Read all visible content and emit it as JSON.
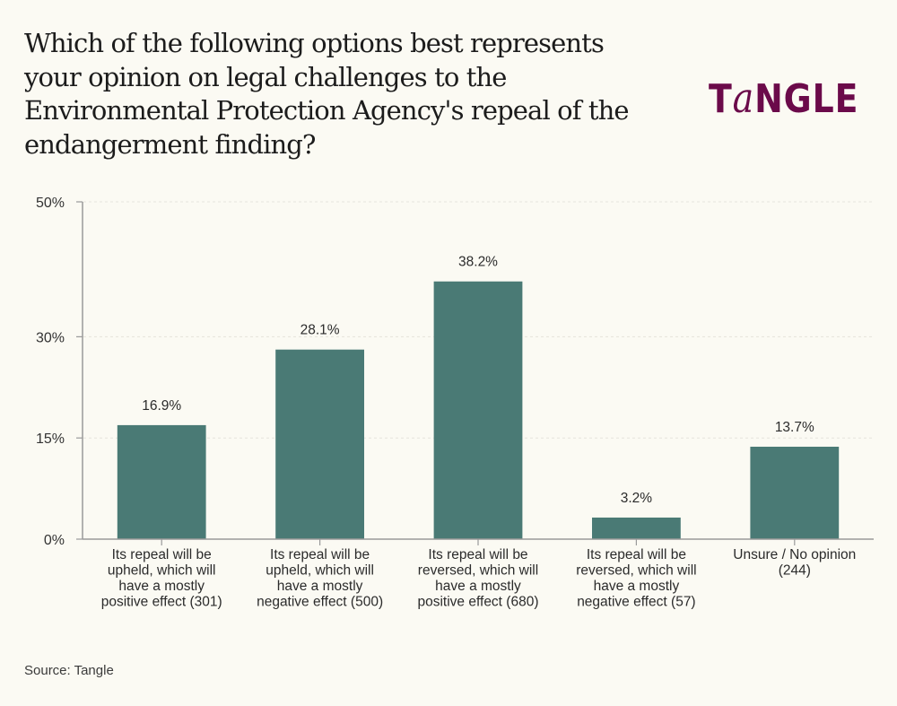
{
  "title": "Which of the following options best represents your opinion on legal challenges to the Environmental Protection Agency's repeal of the endangerment finding?",
  "brand": {
    "logo_text": "TaNGLE",
    "color": "#6b0a4a"
  },
  "source": "Source: Tangle",
  "colors": {
    "bar": "#4a7a75",
    "background": "#fbfaf3",
    "axis": "#9a9a9a",
    "grid": "#e6e4dc"
  },
  "chart_data": {
    "type": "bar",
    "title": "Which of the following options best represents your opinion on legal challenges to the Environmental Protection Agency's repeal of the endangerment finding?",
    "xlabel": "",
    "ylabel": "",
    "ylim": [
      0,
      50
    ],
    "yticks": [
      0,
      15,
      30,
      50
    ],
    "ytick_labels": [
      "0%",
      "15%",
      "30%",
      "50%"
    ],
    "grid": true,
    "categories": [
      [
        "Its repeal will be",
        "upheld, which will",
        "have a mostly",
        "positive effect (301)"
      ],
      [
        "Its repeal will be",
        "upheld, which will",
        "have a mostly",
        "negative effect (500)"
      ],
      [
        "Its repeal will be",
        "reversed, which will",
        "have a mostly",
        "positive effect (680)"
      ],
      [
        "Its repeal will be",
        "reversed, which will",
        "have a mostly",
        "negative effect (57)"
      ],
      [
        "Unsure / No opinion",
        "(244)"
      ]
    ],
    "values": [
      16.9,
      28.1,
      38.2,
      3.2,
      13.7
    ],
    "data_labels": [
      "16.9%",
      "28.1%",
      "38.2%",
      "3.2%",
      "13.7%"
    ],
    "counts": [
      301,
      500,
      680,
      57,
      244
    ]
  }
}
